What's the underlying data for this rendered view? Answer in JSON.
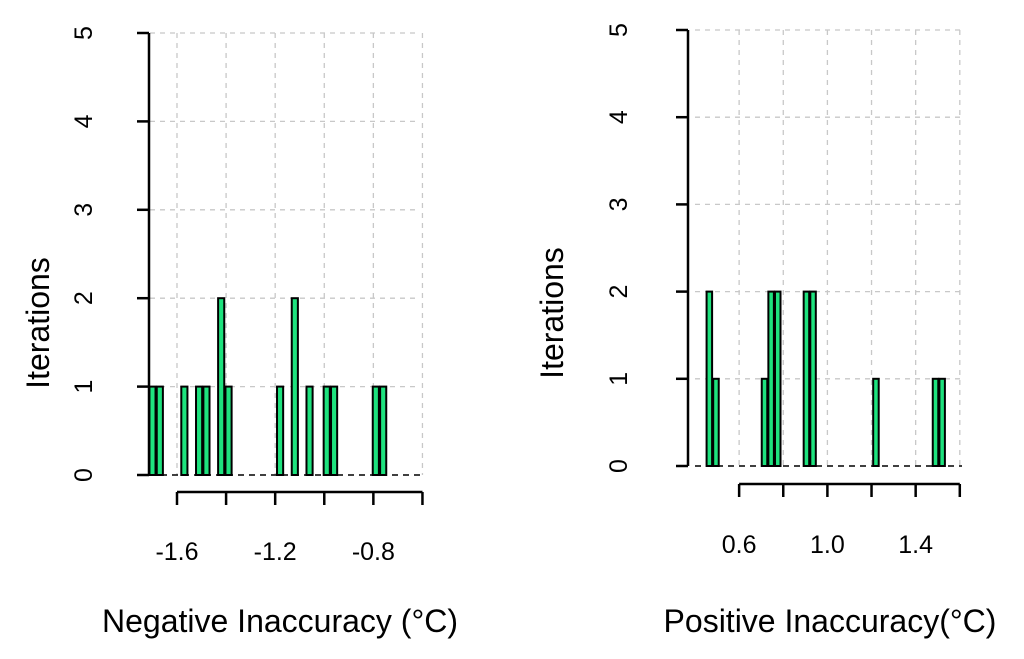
{
  "chart_data": [
    {
      "type": "bar",
      "title": "",
      "xlabel": "Negative Inaccuracy (°C)",
      "ylabel": "Iterations",
      "xlim": [
        -1.71,
        -0.61
      ],
      "ylim": [
        0,
        5
      ],
      "y_ticks": [
        0,
        1,
        2,
        3,
        4,
        5
      ],
      "x_ticks": [
        -1.6,
        -1.4,
        -1.2,
        -1.0,
        -0.8,
        -0.6
      ],
      "x_tick_labels": [
        "-1.6",
        "",
        "-1.2",
        "",
        "-0.8",
        ""
      ],
      "x_grid": [
        -1.6,
        -1.4,
        -1.2,
        -1.0,
        -0.8,
        -0.6
      ],
      "grid": true,
      "bar_width": 0.025,
      "series": [
        {
          "name": "Iterations",
          "x": [
            -1.7,
            -1.67,
            -1.57,
            -1.51,
            -1.48,
            -1.42,
            -1.39,
            -1.18,
            -1.12,
            -1.06,
            -0.99,
            -0.96,
            -0.79,
            -0.76
          ],
          "values": [
            1,
            1,
            1,
            1,
            1,
            2,
            1,
            1,
            2,
            1,
            1,
            1,
            1,
            1
          ]
        }
      ]
    },
    {
      "type": "bar",
      "title": "",
      "xlabel": "Positive Inaccuracy(°C)",
      "ylabel": "Iterations",
      "xlim": [
        0.4,
        1.61
      ],
      "ylim": [
        0,
        5
      ],
      "y_ticks": [
        0,
        1,
        2,
        3,
        4,
        5
      ],
      "x_ticks": [
        0.6,
        0.8,
        1.0,
        1.2,
        1.4,
        1.6
      ],
      "x_tick_labels": [
        "0.6",
        "",
        "1.0",
        "",
        "1.4",
        ""
      ],
      "x_grid": [
        0.6,
        0.8,
        1.0,
        1.2,
        1.4,
        1.6
      ],
      "grid": true,
      "bar_width": 0.025,
      "series": [
        {
          "name": "Iterations",
          "x": [
            0.465,
            0.495,
            0.715,
            0.745,
            0.775,
            0.905,
            0.935,
            1.22,
            1.49,
            1.52
          ],
          "values": [
            2,
            1,
            1,
            2,
            2,
            2,
            2,
            1,
            1,
            1
          ]
        }
      ]
    }
  ]
}
